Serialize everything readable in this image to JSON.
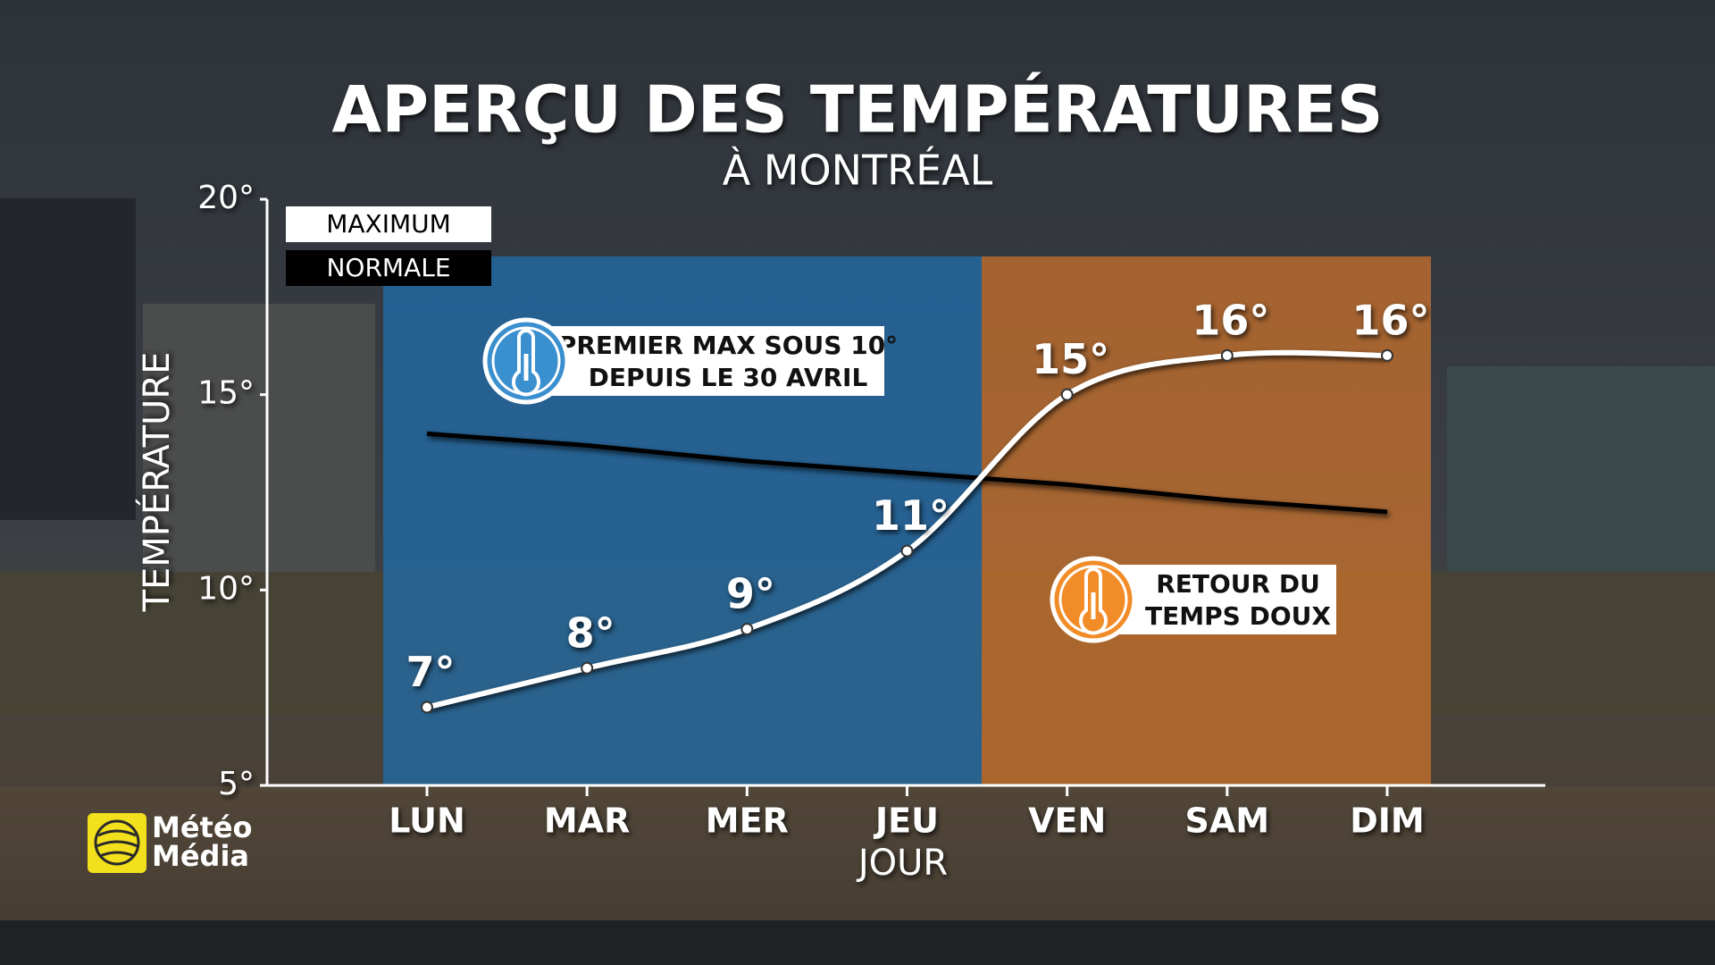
{
  "chart_data": {
    "type": "line",
    "title": "APERÇU DES TEMPÉRATURES",
    "subtitle": "À MONTRÉAL",
    "y_label": "TEMPÉRATURE",
    "x_label": "JOUR",
    "categories": [
      "LUN",
      "MAR",
      "MER",
      "JEU",
      "VEN",
      "SAM",
      "DIM"
    ],
    "series": [
      {
        "name": "MAXIMUM",
        "color": "#ffffff",
        "smooth": true,
        "values": [
          7,
          8,
          9,
          11,
          15,
          16,
          16
        ],
        "value_labels": [
          "7°",
          "8°",
          "9°",
          "11°",
          "15°",
          "16°",
          "16°"
        ]
      },
      {
        "name": "NORMALE",
        "color": "#000000",
        "smooth": false,
        "values": [
          14,
          13.7,
          13.3,
          13,
          12.7,
          12.3,
          12
        ]
      }
    ],
    "ylim": [
      5,
      20
    ],
    "yticks": [
      {
        "value": 5,
        "label": "5°"
      },
      {
        "value": 10,
        "label": "10°"
      },
      {
        "value": 15,
        "label": "15°"
      },
      {
        "value": 20,
        "label": "20°"
      }
    ],
    "annotations": [
      {
        "lines": [
          "PREMIER MAX SOUS 10°",
          "DEPUIS LE 30 AVRIL"
        ],
        "color": "#3a8fcf"
      },
      {
        "lines": [
          "RETOUR DU",
          "TEMPS DOUX"
        ],
        "color": "#f28c28"
      }
    ],
    "logo": [
      "Météo",
      "Média"
    ]
  }
}
